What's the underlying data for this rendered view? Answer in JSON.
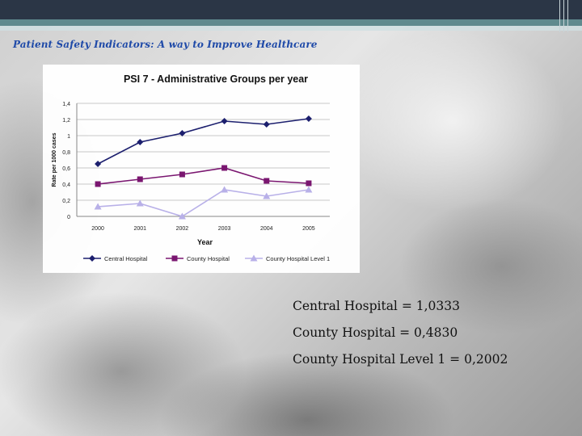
{
  "header": {
    "title": "Patient Safety Indicators: A way to Improve Healthcare"
  },
  "chart_data": {
    "type": "line",
    "title": "PSI 7 - Administrative Groups per year",
    "xlabel": "Year",
    "ylabel": "Rate per 1000 cases",
    "categories": [
      "2000",
      "2001",
      "2002",
      "2003",
      "2004",
      "2005"
    ],
    "ylim": [
      0,
      1.4
    ],
    "yticks": [
      "0",
      "0,2",
      "0,4",
      "0,6",
      "0,8",
      "1",
      "1,2",
      "1,4"
    ],
    "grid": true,
    "legend_position": "bottom",
    "series": [
      {
        "name": "Central Hospital",
        "values": [
          0.65,
          0.92,
          1.03,
          1.18,
          1.14,
          1.21
        ],
        "color": "#1c1f6e",
        "marker": "diamond"
      },
      {
        "name": "County Hospital",
        "values": [
          0.4,
          0.46,
          0.52,
          0.6,
          0.44,
          0.41
        ],
        "color": "#7a1670",
        "marker": "square"
      },
      {
        "name": "County Hospital Level 1",
        "values": [
          0.12,
          0.16,
          0.0,
          0.33,
          0.25,
          0.33
        ],
        "color": "#b8b0e8",
        "marker": "triangle"
      }
    ]
  },
  "stats": [
    "Central Hospital = 1,0333",
    "County Hospital = 0,4830",
    "County Hospital Level 1 = 0,2002"
  ]
}
